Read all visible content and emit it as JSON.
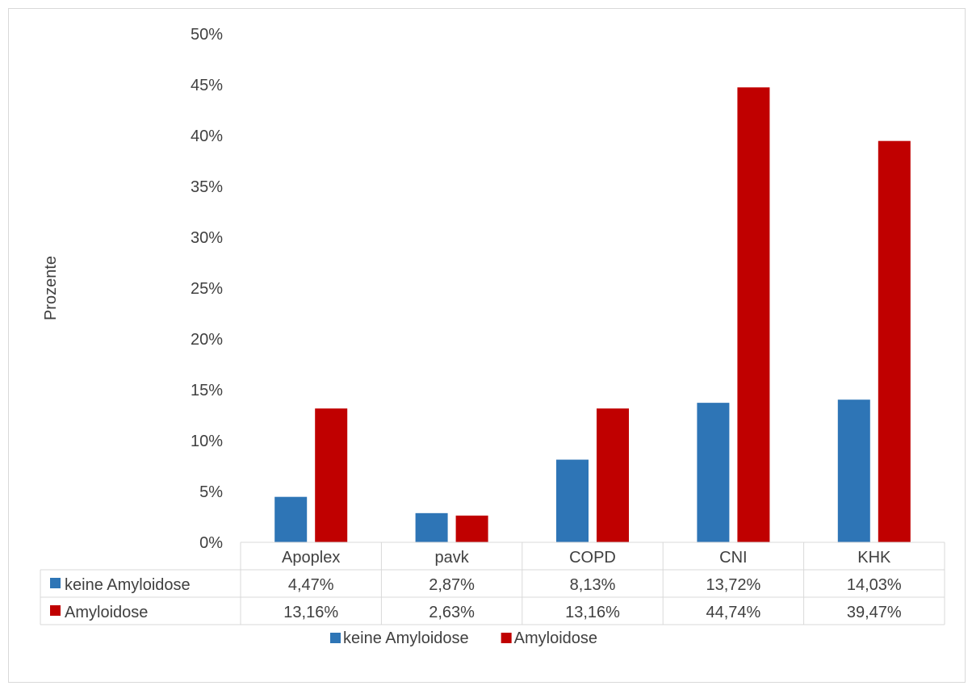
{
  "chart_data": {
    "type": "bar",
    "categories": [
      "Apoplex",
      "pavk",
      "COPD",
      "CNI",
      "KHK"
    ],
    "series": [
      {
        "name": "keine Amyloidose",
        "color": "#2e75b6",
        "values": [
          4.47,
          2.87,
          8.13,
          13.72,
          14.03
        ],
        "labels": [
          "4,47%",
          "2,87%",
          "8,13%",
          "13,72%",
          "14,03%"
        ]
      },
      {
        "name": "Amyloidose",
        "color": "#c00000",
        "values": [
          13.16,
          2.63,
          13.16,
          44.74,
          39.47
        ],
        "labels": [
          "13,16%",
          "2,63%",
          "13,16%",
          "44,74%",
          "39,47%"
        ]
      }
    ],
    "ylabel": "Prozente",
    "ylim": [
      0,
      50
    ],
    "yticks": [
      "0%",
      "5%",
      "10%",
      "15%",
      "20%",
      "25%",
      "30%",
      "35%",
      "40%",
      "45%",
      "50%"
    ],
    "grid": false,
    "legend": "bottom",
    "data_table": true
  }
}
